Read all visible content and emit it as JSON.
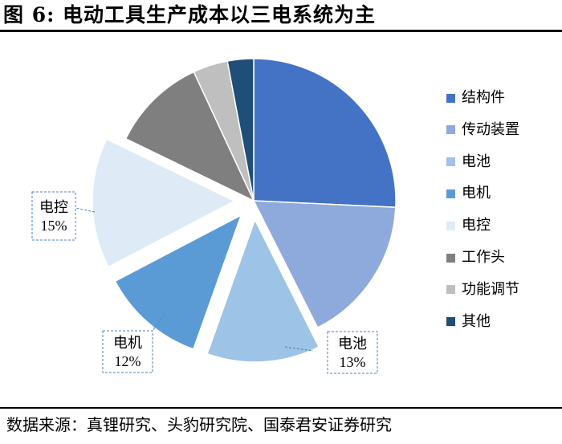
{
  "figure": {
    "title": "图 6:  电动工具生产成本以三电系统为主",
    "source": "数据来源：真锂研究、头豹研究院、国泰君安证券研究"
  },
  "chart_data": {
    "type": "pie",
    "slices": [
      {
        "label": "结构件",
        "value": 26,
        "color": "#4472C4",
        "explode": false,
        "data_label": ""
      },
      {
        "label": "传动装置",
        "value": 17,
        "color": "#8EA9DB",
        "explode": false,
        "data_label": ""
      },
      {
        "label": "电池",
        "value": 13,
        "color": "#9DC3E6",
        "explode": true,
        "data_label": "13%"
      },
      {
        "label": "电机",
        "value": 12,
        "color": "#5B9BD5",
        "explode": true,
        "data_label": "12%"
      },
      {
        "label": "电控",
        "value": 15,
        "color": "#DEEBF7",
        "explode": true,
        "data_label": "15%"
      },
      {
        "label": "工作头",
        "value": 11,
        "color": "#7F7F7F",
        "explode": false,
        "data_label": ""
      },
      {
        "label": "功能调节",
        "value": 4,
        "color": "#BFBFBF",
        "explode": false,
        "data_label": ""
      },
      {
        "label": "其他",
        "value": 3,
        "color": "#1F4E79",
        "explode": false,
        "data_label": ""
      }
    ],
    "legend_position": "right"
  }
}
